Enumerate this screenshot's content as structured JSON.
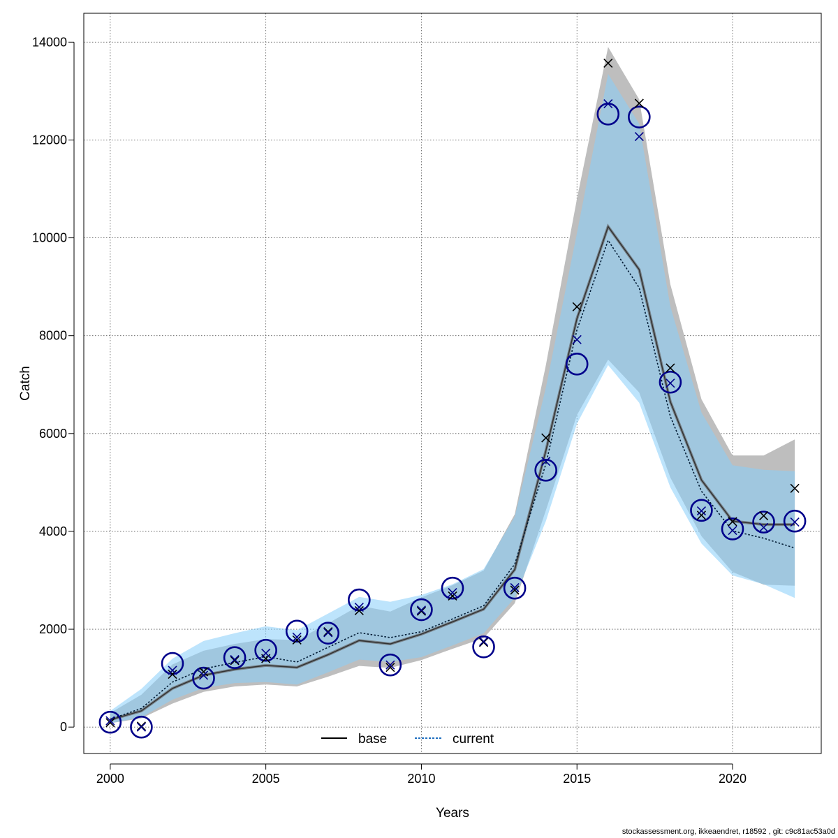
{
  "chart_data": {
    "type": "line",
    "xlabel": "Years",
    "ylabel": "Catch",
    "xlim": [
      1999.15,
      2022.85
    ],
    "ylim": [
      -540,
      14590
    ],
    "x_ticks": [
      2000,
      2005,
      2010,
      2015,
      2020
    ],
    "y_ticks": [
      0,
      2000,
      4000,
      6000,
      8000,
      10000,
      12000,
      14000
    ],
    "grid": true,
    "legend_placement": "bottom",
    "colors": {
      "base_band": "#bebebe",
      "current_band": "#87cefa",
      "observed_circle": "#00008b",
      "base_cross": "#000000",
      "current_cross": "#00008b",
      "current_line": "#00008b",
      "base_line": "#000000"
    },
    "x": [
      2000,
      2001,
      2002,
      2003,
      2004,
      2005,
      2006,
      2007,
      2008,
      2009,
      2010,
      2011,
      2012,
      2013,
      2014,
      2015,
      2016,
      2017,
      2018,
      2019,
      2020,
      2021,
      2022
    ],
    "series": [
      {
        "name": "base",
        "line_style": "solid",
        "estimate": [
          150,
          330,
          790,
          1060,
          1180,
          1260,
          1220,
          1480,
          1770,
          1700,
          1900,
          2150,
          2410,
          3220,
          5650,
          8350,
          10230,
          9350,
          6650,
          5050,
          4210,
          4140,
          4140
        ],
        "lower": [
          80,
          180,
          480,
          720,
          830,
          870,
          830,
          1030,
          1250,
          1210,
          1370,
          1600,
          1820,
          2530,
          4430,
          6380,
          7510,
          6840,
          5100,
          3900,
          3170,
          2910,
          2890
        ],
        "upper": [
          290,
          660,
          1280,
          1560,
          1700,
          1800,
          1780,
          2120,
          2480,
          2360,
          2650,
          2900,
          3200,
          4350,
          7400,
          10800,
          13900,
          12830,
          9050,
          6700,
          5550,
          5550,
          5880
        ],
        "estimated_catch": [
          90,
          20,
          1080,
          1130,
          1360,
          1400,
          1780,
          1950,
          2380,
          1220,
          2370,
          2680,
          1730,
          2800,
          5910,
          8590,
          13570,
          12750,
          7340,
          4330,
          4200,
          4320,
          4880
        ]
      },
      {
        "name": "current",
        "line_style": "dotted",
        "estimate": [
          160,
          380,
          920,
          1190,
          1320,
          1440,
          1330,
          1630,
          1930,
          1830,
          1950,
          2210,
          2480,
          3330,
          5380,
          8120,
          9950,
          8980,
          6350,
          4820,
          4010,
          3860,
          3660
        ],
        "lower": [
          80,
          200,
          560,
          800,
          900,
          920,
          870,
          1120,
          1380,
          1330,
          1430,
          1670,
          1920,
          2640,
          4210,
          6200,
          7400,
          6630,
          4900,
          3750,
          3100,
          2920,
          2640
        ],
        "upper": [
          330,
          780,
          1400,
          1760,
          1920,
          2060,
          1980,
          2320,
          2660,
          2560,
          2700,
          2920,
          3230,
          4300,
          6940,
          10100,
          13350,
          12330,
          8600,
          6430,
          5350,
          5260,
          5230
        ],
        "estimated_catch": [
          130,
          0,
          1160,
          1060,
          1380,
          1510,
          1840,
          1930,
          2450,
          1270,
          2390,
          2750,
          1750,
          2850,
          5430,
          7920,
          12740,
          12070,
          7030,
          4420,
          4020,
          4080,
          4190
        ]
      }
    ],
    "observed": [
      100,
      0,
      1300,
      1000,
      1420,
      1570,
      1960,
      1920,
      2600,
      1270,
      2400,
      2840,
      1640,
      2840,
      5250,
      7420,
      12530,
      12470,
      7050,
      4430,
      4050,
      4190,
      4210
    ],
    "legend": [
      "base",
      "current"
    ]
  },
  "footer": "stockassessment.org, ikkeaendret, r18592 , git: c9c81ac53a0d"
}
